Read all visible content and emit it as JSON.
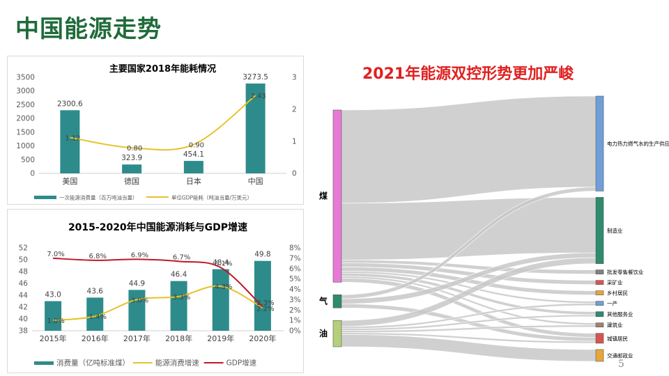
{
  "page": {
    "title": "中国能源走势",
    "page_number": "5"
  },
  "colors": {
    "bar": "#2e8b8b",
    "gdp_intensity": "#e6c229",
    "energy_growth": "#e6c229",
    "gdp_growth": "#c0182a",
    "coal": "#e87ad6",
    "gas": "#2e8b6e",
    "oil": "#b5cf7a"
  },
  "chart_data": [
    {
      "type": "bar",
      "title": "主要国家2018年能耗情况",
      "categories": [
        "美国",
        "德国",
        "日本",
        "中国"
      ],
      "series": [
        {
          "name": "一次能源消费量（百万吨油当量）",
          "kind": "bar",
          "axis": "left",
          "values": [
            2300.6,
            323.9,
            454.1,
            3273.5
          ],
          "labels": [
            "2300.6",
            "323.9",
            "454.1",
            "3273.5"
          ]
        },
        {
          "name": "单位GDP能耗（吨油当量/万美元）",
          "kind": "line",
          "axis": "right",
          "values": [
            1.12,
            0.8,
            0.9,
            2.43
          ],
          "labels": [
            "1.12",
            "0.80",
            "0.90",
            "2.43"
          ]
        }
      ],
      "ylim": [
        0,
        3500
      ],
      "yticks": [
        "0",
        "500",
        "1000",
        "1500",
        "2000",
        "2500",
        "3000",
        "3500"
      ],
      "y2lim": [
        0,
        3
      ],
      "y2ticks": [
        "0",
        "1",
        "2",
        "3"
      ],
      "legend": "bottom"
    },
    {
      "type": "bar",
      "title": "2015-2020年中国能源消耗与GDP增速",
      "categories": [
        "2015年",
        "2016年",
        "2017年",
        "2018年",
        "2019年",
        "2020年"
      ],
      "series": [
        {
          "name": "消费量（亿吨标准煤）",
          "kind": "bar",
          "axis": "left",
          "values": [
            43.0,
            43.6,
            44.9,
            46.4,
            48.4,
            49.8
          ],
          "labels": [
            "43.0",
            "43.6",
            "44.9",
            "46.4",
            "48.4",
            "49.8"
          ]
        },
        {
          "name": "能源消费增速",
          "kind": "line",
          "axis": "right",
          "values": [
            1.0,
            1.4,
            3.0,
            3.3,
            4.3,
            2.2
          ],
          "labels": [
            "1.0%",
            "1.4%",
            "3.0%",
            "3.3%",
            "4.3%",
            "2.2%"
          ]
        },
        {
          "name": "GDP增速",
          "kind": "line",
          "axis": "right",
          "values": [
            7.0,
            6.8,
            6.9,
            6.7,
            6.1,
            2.3
          ],
          "labels": [
            "7.0%",
            "6.8%",
            "6.9%",
            "6.7%",
            "6.1%",
            "2.3%"
          ]
        }
      ],
      "ylim": [
        38,
        52
      ],
      "yticks": [
        "38",
        "40",
        "42",
        "44",
        "46",
        "48",
        "50",
        "52"
      ],
      "y2lim": [
        0,
        8
      ],
      "y2ticks": [
        "0%",
        "1%",
        "2%",
        "3%",
        "4%",
        "5%",
        "6%",
        "7%",
        "8%"
      ],
      "legend": "bottom"
    },
    {
      "type": "sankey",
      "title": "2021年能源双控形势更加严峻",
      "sources": [
        {
          "name": "煤",
          "color": "#e87ad6"
        },
        {
          "name": "气",
          "color": "#2e8b6e"
        },
        {
          "name": "油",
          "color": "#b5cf7a"
        }
      ],
      "targets": [
        {
          "name": "电力热力燃气水的生产供应",
          "color": "#6f9fd8"
        },
        {
          "name": "制造业",
          "color": "#2e8b6e"
        },
        {
          "name": "批发零售餐饮业",
          "color": "#808080"
        },
        {
          "name": "采矿业",
          "color": "#d9534f"
        },
        {
          "name": "乡村居民",
          "color": "#e8a63a"
        },
        {
          "name": "一产",
          "color": "#6f9fd8"
        },
        {
          "name": "其他服务业",
          "color": "#2e8b6e"
        },
        {
          "name": "建筑业",
          "color": "#a08070"
        },
        {
          "name": "城镇居民",
          "color": "#d9534f"
        },
        {
          "name": "交通邮政业",
          "color": "#e8a63a"
        }
      ],
      "flows": [
        {
          "source": "煤",
          "target": "电力热力燃气水的生产供应",
          "value": 46
        },
        {
          "source": "煤",
          "target": "制造业",
          "value": 28
        },
        {
          "source": "煤",
          "target": "批发零售餐饮业",
          "value": 1.5
        },
        {
          "source": "煤",
          "target": "采矿业",
          "value": 2
        },
        {
          "source": "煤",
          "target": "乡村居民",
          "value": 2
        },
        {
          "source": "煤",
          "target": "一产",
          "value": 1
        },
        {
          "source": "煤",
          "target": "其他服务业",
          "value": 1.5
        },
        {
          "source": "煤",
          "target": "建筑业",
          "value": 1
        },
        {
          "source": "煤",
          "target": "城镇居民",
          "value": 2
        },
        {
          "source": "气",
          "target": "电力热力燃气水的生产供应",
          "value": 2
        },
        {
          "source": "气",
          "target": "制造业",
          "value": 2.5
        },
        {
          "source": "气",
          "target": "城镇居民",
          "value": 2
        },
        {
          "source": "油",
          "target": "制造业",
          "value": 3
        },
        {
          "source": "油",
          "target": "一产",
          "value": 1
        },
        {
          "source": "油",
          "target": "其他服务业",
          "value": 1
        },
        {
          "source": "油",
          "target": "建筑业",
          "value": 1
        },
        {
          "source": "油",
          "target": "城镇居民",
          "value": 1
        },
        {
          "source": "油",
          "target": "交通邮政业",
          "value": 6
        }
      ]
    }
  ]
}
